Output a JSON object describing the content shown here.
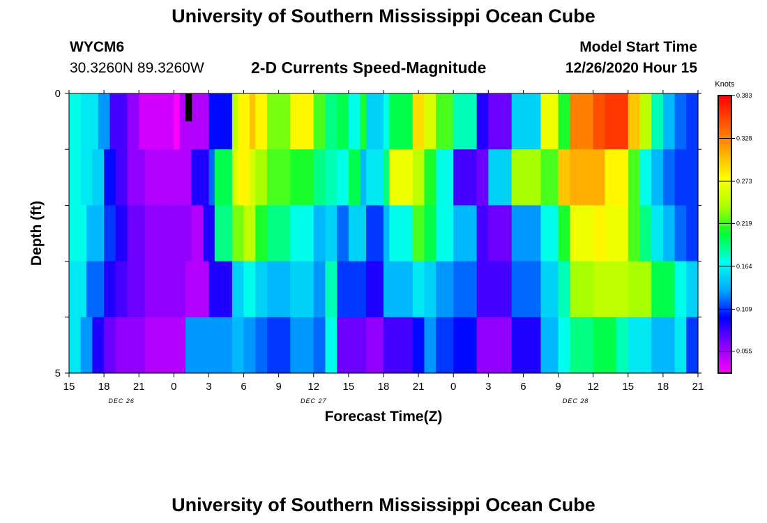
{
  "header": {
    "title": "University of Southern Mississippi Ocean Cube",
    "footer_title": "University of Southern Mississippi Ocean Cube",
    "station_id": "WYCM6",
    "coordinates": "30.3260N 89.3260W",
    "plot_title": "2-D Currents Speed-Magnitude",
    "model_start_label": "Model Start Time",
    "model_start_value": "12/26/2020 Hour 15"
  },
  "chart_data": {
    "type": "heatmap",
    "title": "2-D Currents Speed-Magnitude",
    "xlabel": "Forecast Time(Z)",
    "ylabel": "Depth (ft)",
    "x_tick_labels": [
      "15",
      "18",
      "21",
      "0",
      "3",
      "6",
      "9",
      "12",
      "15",
      "18",
      "21",
      "0",
      "3",
      "6",
      "9",
      "12",
      "15",
      "18",
      "21"
    ],
    "date_labels": [
      {
        "text": "DEC 26",
        "tick_index": 1.5
      },
      {
        "text": "DEC 27",
        "tick_index": 7
      },
      {
        "text": "DEC 28",
        "tick_index": 14.5
      }
    ],
    "y_tick_labels": [
      "0",
      "5"
    ],
    "ylim": [
      0,
      5
    ],
    "hours": 54,
    "hours_per_column": 0.5,
    "depth_layers": 5,
    "colorbar": {
      "label": "Knots",
      "min": 0.027,
      "max": 0.383,
      "tick_labels": [
        "0.383",
        "0.328",
        "0.273",
        "0.219",
        "0.164",
        "0.109",
        "0.055"
      ],
      "tick_values": [
        0.383,
        0.328,
        0.273,
        0.219,
        0.164,
        0.109,
        0.055
      ],
      "colors": [
        "#ff00ff",
        "#8800ff",
        "#0000ff",
        "#00aaff",
        "#00ffee",
        "#00ff33",
        "#aaff00",
        "#ffff00",
        "#ffaa00",
        "#ff5500",
        "#ff0000"
      ]
    },
    "series": [
      {
        "name": "Layer 1 (surface)",
        "breakpoints": [
          0,
          1,
          2.5,
          3.5,
          5,
          6,
          9,
          9.5,
          11,
          12,
          14,
          14.5,
          15.5,
          16,
          17,
          19,
          21,
          22,
          23,
          24,
          25,
          25.5,
          27,
          27.5,
          29.5,
          30.5,
          31.5,
          33,
          35,
          36,
          38,
          40.5,
          42,
          43,
          45,
          46,
          48,
          49,
          50,
          51,
          52,
          53,
          54
        ],
        "values": [
          0.17,
          0.16,
          0.13,
          0.08,
          0.06,
          0.04,
          0.01,
          0.05,
          0.05,
          0.1,
          0.25,
          0.28,
          0.3,
          0.28,
          0.23,
          0.28,
          0.22,
          0.19,
          0.2,
          0.17,
          0.21,
          0.15,
          0.17,
          0.2,
          0.29,
          0.26,
          0.22,
          0.18,
          0.09,
          0.07,
          0.15,
          0.27,
          0.21,
          0.33,
          0.35,
          0.36,
          0.3,
          0.25,
          0.18,
          0.14,
          0.12,
          0.11
        ]
      },
      {
        "name": "Layer 2",
        "breakpoints": [
          0,
          1,
          2,
          3,
          4,
          5,
          6.5,
          9.5,
          10.5,
          12,
          12.5,
          14,
          14.5,
          15.5,
          16,
          17,
          19,
          21,
          22,
          23,
          24,
          25,
          25.5,
          27,
          27.5,
          29.5,
          30.5,
          31.5,
          33,
          35,
          36,
          38,
          40.5,
          42,
          43,
          45,
          46,
          48,
          49,
          50,
          51,
          52,
          53,
          54
        ],
        "values": [
          0.17,
          0.16,
          0.15,
          0.1,
          0.08,
          0.06,
          0.05,
          0.05,
          0.09,
          0.12,
          0.2,
          0.26,
          0.28,
          0.26,
          0.24,
          0.22,
          0.21,
          0.19,
          0.18,
          0.17,
          0.2,
          0.14,
          0.16,
          0.19,
          0.27,
          0.25,
          0.21,
          0.17,
          0.08,
          0.07,
          0.15,
          0.24,
          0.22,
          0.3,
          0.31,
          0.31,
          0.28,
          0.22,
          0.17,
          0.14,
          0.12,
          0.11
        ]
      },
      {
        "name": "Layer 3",
        "breakpoints": [
          0,
          1.5,
          3,
          4,
          5,
          6.5,
          10.5,
          11.5,
          12.5,
          14,
          15,
          16,
          17,
          19,
          21,
          22,
          23,
          24,
          25.5,
          27,
          27.5,
          29.5,
          30.5,
          31.5,
          33,
          35,
          36,
          38,
          40.5,
          42,
          43,
          45,
          46,
          48,
          49,
          50,
          51,
          52,
          53,
          54
        ],
        "values": [
          0.17,
          0.14,
          0.11,
          0.09,
          0.07,
          0.06,
          0.05,
          0.09,
          0.19,
          0.23,
          0.25,
          0.21,
          0.19,
          0.17,
          0.14,
          0.15,
          0.12,
          0.15,
          0.11,
          0.14,
          0.17,
          0.22,
          0.2,
          0.17,
          0.14,
          0.08,
          0.07,
          0.13,
          0.17,
          0.21,
          0.27,
          0.28,
          0.27,
          0.22,
          0.19,
          0.16,
          0.14,
          0.12,
          0.11,
          0.11
        ]
      },
      {
        "name": "Layer 4",
        "breakpoints": [
          0,
          1.5,
          3,
          4,
          5,
          6.5,
          10,
          12,
          14,
          15,
          16,
          17,
          19,
          21,
          22,
          23,
          25.5,
          27,
          29.5,
          30.5,
          31.5,
          33,
          35,
          36,
          38,
          40.5,
          42,
          43,
          45,
          47,
          48,
          50,
          52,
          53,
          54
        ],
        "values": [
          0.16,
          0.12,
          0.09,
          0.08,
          0.07,
          0.06,
          0.05,
          0.09,
          0.15,
          0.17,
          0.15,
          0.14,
          0.15,
          0.13,
          0.18,
          0.11,
          0.09,
          0.14,
          0.16,
          0.15,
          0.13,
          0.12,
          0.08,
          0.08,
          0.12,
          0.15,
          0.18,
          0.24,
          0.25,
          0.25,
          0.24,
          0.2,
          0.17,
          0.15,
          0.11
        ]
      },
      {
        "name": "Layer 5 (bottom)",
        "breakpoints": [
          0,
          1,
          2,
          3,
          4,
          5,
          6.5,
          10,
          12,
          14,
          15,
          16,
          17,
          19,
          21,
          22,
          23,
          25.5,
          27,
          29.5,
          30.5,
          31.5,
          33,
          35,
          36,
          38,
          40.5,
          42,
          43,
          45,
          47,
          48,
          50,
          52,
          53,
          54
        ],
        "values": [
          0.16,
          0.13,
          0.09,
          0.07,
          0.06,
          0.06,
          0.05,
          0.13,
          0.13,
          0.14,
          0.13,
          0.12,
          0.11,
          0.13,
          0.12,
          0.17,
          0.07,
          0.06,
          0.08,
          0.1,
          0.13,
          0.11,
          0.1,
          0.06,
          0.06,
          0.09,
          0.14,
          0.17,
          0.19,
          0.2,
          0.18,
          0.16,
          0.14,
          0.16,
          0.11,
          0.11
        ]
      }
    ],
    "missing": [
      {
        "layer": 1,
        "hour": 10
      }
    ]
  }
}
